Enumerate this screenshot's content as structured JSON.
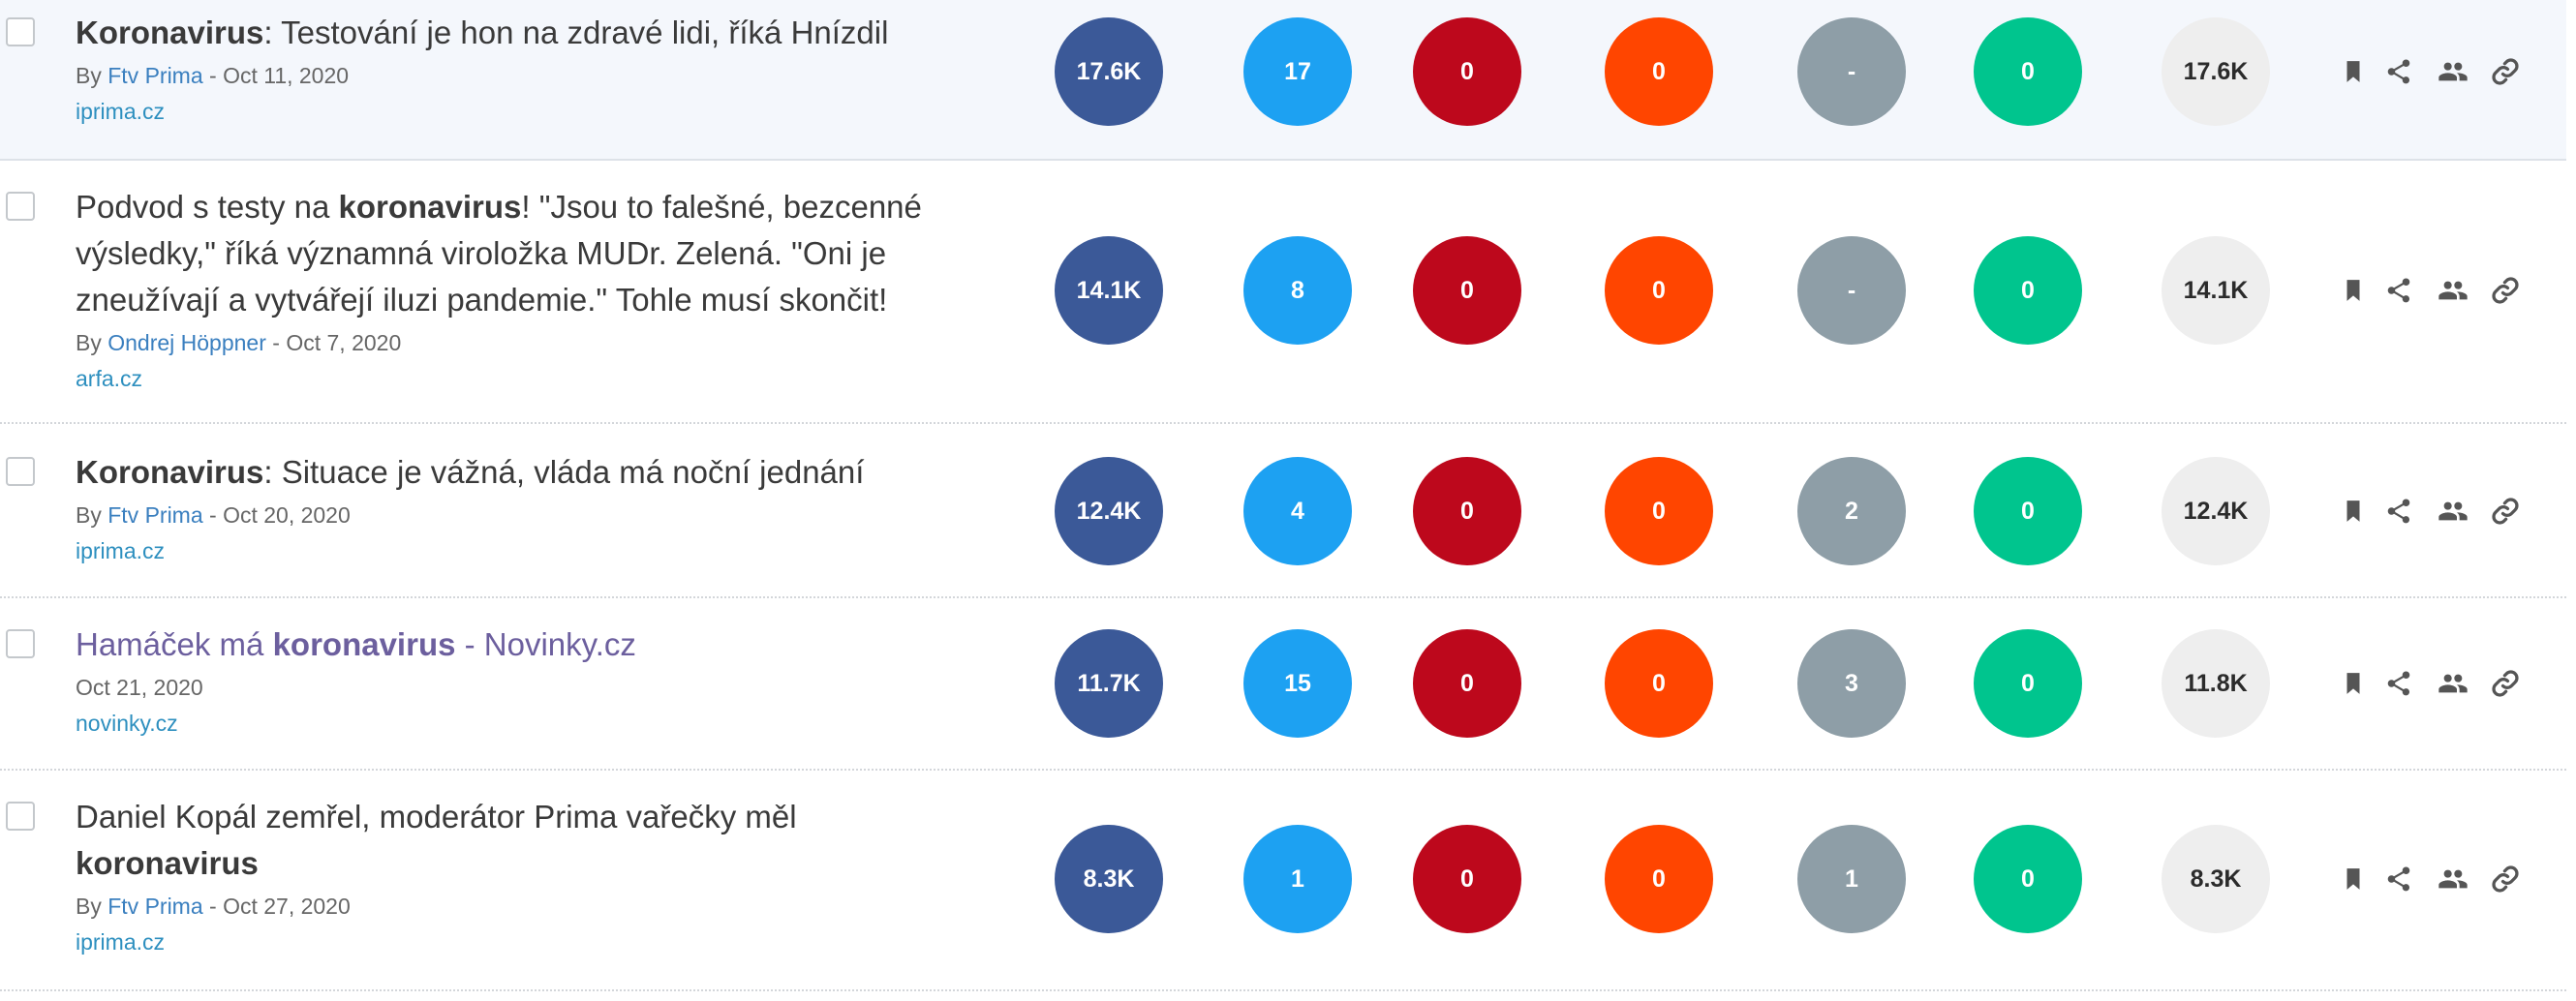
{
  "colors": {
    "facebook": "#3b5998",
    "twitter": "#1da1f2",
    "pinterest": "#bd081c",
    "reddit": "#ff4500",
    "number_of_links": "#8e9ea7",
    "evergreen_score": "#00c58e",
    "total": "#eeeeee",
    "action_icon": "#555555"
  },
  "icons": {
    "bookmark": "bookmark-icon",
    "share": "share-icon",
    "influencers": "users-icon",
    "backlinks": "link-icon"
  },
  "results": [
    {
      "title": [
        {
          "text": "Koronavirus",
          "bold": true
        },
        {
          "text": ": Testování je hon na zdravé lidi, říká Hnízdil",
          "bold": false
        }
      ],
      "visited": false,
      "highlighted": true,
      "by_prefix": "By ",
      "author": "Ftv Prima",
      "date": " - Oct 11, 2020",
      "domain": "iprima.cz",
      "metrics": {
        "facebook": "17.6K",
        "twitter": "17",
        "pinterest": "0",
        "reddit": "0",
        "number_of_links": "-",
        "evergreen_score": "0",
        "total": "17.6K"
      }
    },
    {
      "title": [
        {
          "text": "Podvod s testy na ",
          "bold": false
        },
        {
          "text": "koronavirus",
          "bold": true
        },
        {
          "text": "! \"Jsou to falešné, bezcenné výsledky,\" říká významná viroložka MUDr. Zelená. \"Oni je zneužívají a vytvářejí iluzi pandemie.\" Tohle musí skončit!",
          "bold": false
        }
      ],
      "visited": false,
      "highlighted": false,
      "by_prefix": "By ",
      "author": "Ondrej Höppner",
      "date": " - Oct 7, 2020",
      "domain": "arfa.cz",
      "metrics": {
        "facebook": "14.1K",
        "twitter": "8",
        "pinterest": "0",
        "reddit": "0",
        "number_of_links": "-",
        "evergreen_score": "0",
        "total": "14.1K"
      }
    },
    {
      "title": [
        {
          "text": "Koronavirus",
          "bold": true
        },
        {
          "text": ": Situace je vážná, vláda má noční jednání",
          "bold": false
        }
      ],
      "visited": false,
      "highlighted": false,
      "by_prefix": "By ",
      "author": "Ftv Prima",
      "date": " - Oct 20, 2020",
      "domain": "iprima.cz",
      "metrics": {
        "facebook": "12.4K",
        "twitter": "4",
        "pinterest": "0",
        "reddit": "0",
        "number_of_links": "2",
        "evergreen_score": "0",
        "total": "12.4K"
      }
    },
    {
      "title": [
        {
          "text": "Hamáček má ",
          "bold": false
        },
        {
          "text": "koronavirus",
          "bold": true
        },
        {
          "text": " - Novinky.cz",
          "bold": false
        }
      ],
      "visited": true,
      "highlighted": false,
      "by_prefix": "",
      "author": "",
      "date": "Oct 21, 2020",
      "domain": "novinky.cz",
      "metrics": {
        "facebook": "11.7K",
        "twitter": "15",
        "pinterest": "0",
        "reddit": "0",
        "number_of_links": "3",
        "evergreen_score": "0",
        "total": "11.8K"
      }
    },
    {
      "title": [
        {
          "text": "Daniel Kopál zemřel, moderátor Prima vařečky měl ",
          "bold": false
        },
        {
          "text": "koronavirus",
          "bold": true
        }
      ],
      "visited": false,
      "highlighted": false,
      "by_prefix": "By ",
      "author": "Ftv Prima",
      "date": " - Oct 27, 2020",
      "domain": "iprima.cz",
      "metrics": {
        "facebook": "8.3K",
        "twitter": "1",
        "pinterest": "0",
        "reddit": "0",
        "number_of_links": "1",
        "evergreen_score": "0",
        "total": "8.3K"
      }
    }
  ]
}
